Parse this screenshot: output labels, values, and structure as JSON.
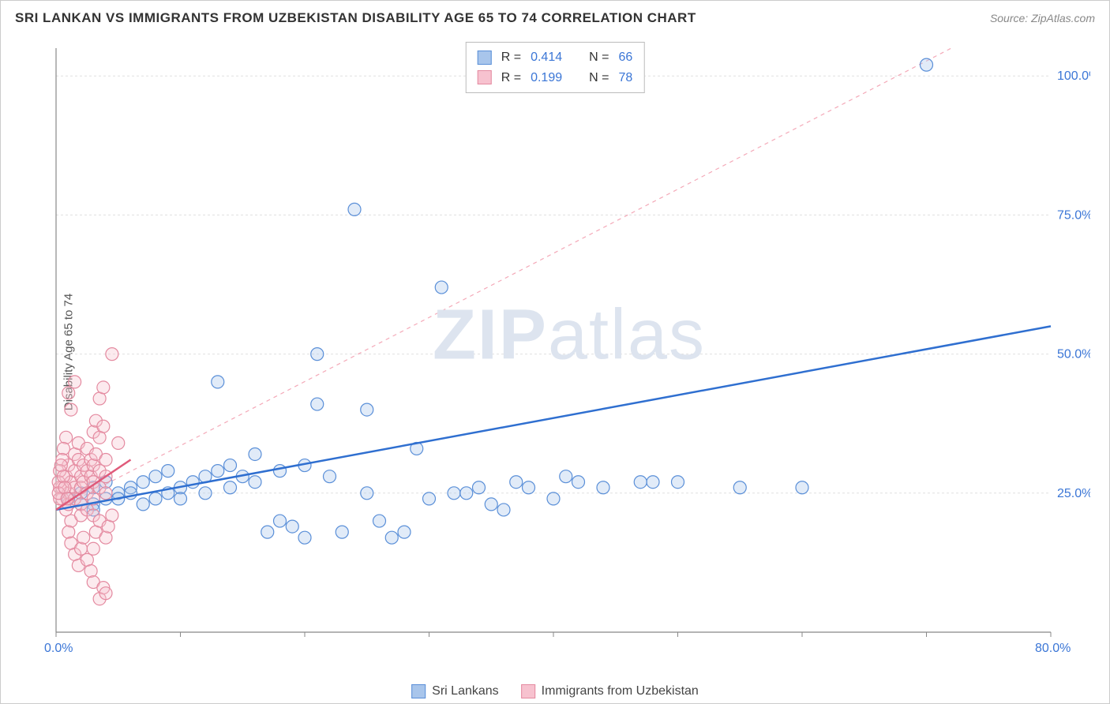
{
  "title": "SRI LANKAN VS IMMIGRANTS FROM UZBEKISTAN DISABILITY AGE 65 TO 74 CORRELATION CHART",
  "source": "Source: ZipAtlas.com",
  "y_axis_label": "Disability Age 65 to 74",
  "watermark": {
    "bold": "ZIP",
    "light": "atlas"
  },
  "chart": {
    "type": "scatter",
    "xlim": [
      0,
      80
    ],
    "ylim": [
      0,
      105
    ],
    "x_ticks": [
      0,
      10,
      20,
      30,
      40,
      50,
      60,
      70,
      80
    ],
    "x_tick_labels": [
      "0.0%",
      "",
      "",
      "",
      "",
      "",
      "",
      "",
      "80.0%"
    ],
    "y_ticks": [
      25,
      50,
      75,
      100
    ],
    "y_tick_labels": [
      "25.0%",
      "50.0%",
      "75.0%",
      "100.0%"
    ],
    "grid_color": "#e0e0e0",
    "grid_dash": "3,3",
    "axis_color": "#888888",
    "background_color": "#ffffff",
    "marker_radius": 8,
    "marker_stroke_width": 1.2,
    "marker_fill_opacity": 0.35,
    "tick_label_color": "#3b76d6",
    "tick_label_fontsize": 16
  },
  "series": [
    {
      "name": "Sri Lankans",
      "color_stroke": "#5a8fd8",
      "color_fill": "#a8c5eb",
      "R": "0.414",
      "N": "66",
      "trend": {
        "x1": 0,
        "y1": 22,
        "x2": 80,
        "y2": 55,
        "dash": "none",
        "width": 2.5,
        "color": "#2f6fd0"
      },
      "extrapolation": {
        "x1": 0,
        "y1": 22,
        "x2": 72,
        "y2": 105,
        "dash": "5,5",
        "width": 1.2,
        "color": "#f4a9b8"
      },
      "points": [
        [
          1,
          24
        ],
        [
          2,
          25
        ],
        [
          3,
          26
        ],
        [
          3,
          23
        ],
        [
          4,
          27
        ],
        [
          5,
          25
        ],
        [
          5,
          24
        ],
        [
          6,
          26
        ],
        [
          7,
          27
        ],
        [
          7,
          23
        ],
        [
          8,
          28
        ],
        [
          8,
          24
        ],
        [
          9,
          29
        ],
        [
          9,
          25
        ],
        [
          10,
          26
        ],
        [
          10,
          24
        ],
        [
          11,
          27
        ],
        [
          12,
          28
        ],
        [
          12,
          25
        ],
        [
          13,
          29
        ],
        [
          13,
          45
        ],
        [
          14,
          30
        ],
        [
          14,
          26
        ],
        [
          15,
          28
        ],
        [
          16,
          32
        ],
        [
          16,
          27
        ],
        [
          17,
          18
        ],
        [
          18,
          29
        ],
        [
          18,
          20
        ],
        [
          19,
          19
        ],
        [
          20,
          30
        ],
        [
          20,
          17
        ],
        [
          21,
          50
        ],
        [
          21,
          41
        ],
        [
          22,
          28
        ],
        [
          23,
          18
        ],
        [
          24,
          76
        ],
        [
          25,
          40
        ],
        [
          25,
          25
        ],
        [
          26,
          20
        ],
        [
          27,
          17
        ],
        [
          28,
          18
        ],
        [
          29,
          33
        ],
        [
          30,
          24
        ],
        [
          31,
          62
        ],
        [
          32,
          25
        ],
        [
          33,
          25
        ],
        [
          34,
          26
        ],
        [
          35,
          23
        ],
        [
          36,
          22
        ],
        [
          37,
          27
        ],
        [
          38,
          26
        ],
        [
          40,
          24
        ],
        [
          41,
          28
        ],
        [
          42,
          27
        ],
        [
          44,
          26
        ],
        [
          47,
          27
        ],
        [
          48,
          27
        ],
        [
          50,
          27
        ],
        [
          55,
          26
        ],
        [
          60,
          26
        ],
        [
          70,
          102
        ],
        [
          3,
          22
        ],
        [
          4,
          24
        ],
        [
          6,
          25
        ],
        [
          2,
          23
        ]
      ]
    },
    {
      "name": "Immigrants from Uzbekistan",
      "color_stroke": "#e48aa0",
      "color_fill": "#f7c2cf",
      "R": "0.199",
      "N": "78",
      "trend": {
        "x1": 0,
        "y1": 22,
        "x2": 6,
        "y2": 31,
        "dash": "none",
        "width": 2.5,
        "color": "#e05a7a"
      },
      "points": [
        [
          0.5,
          24
        ],
        [
          0.5,
          26
        ],
        [
          0.8,
          28
        ],
        [
          0.8,
          22
        ],
        [
          1,
          30
        ],
        [
          1,
          25
        ],
        [
          1,
          23
        ],
        [
          1.2,
          27
        ],
        [
          1.2,
          20
        ],
        [
          1.5,
          32
        ],
        [
          1.5,
          29
        ],
        [
          1.5,
          26
        ],
        [
          1.5,
          24
        ],
        [
          1.8,
          34
        ],
        [
          1.8,
          31
        ],
        [
          2,
          28
        ],
        [
          2,
          26
        ],
        [
          2,
          23
        ],
        [
          2,
          21
        ],
        [
          2.2,
          30
        ],
        [
          2.2,
          27
        ],
        [
          2.5,
          33
        ],
        [
          2.5,
          29
        ],
        [
          2.5,
          25
        ],
        [
          2.5,
          22
        ],
        [
          2.8,
          31
        ],
        [
          2.8,
          28
        ],
        [
          3,
          36
        ],
        [
          3,
          30
        ],
        [
          3,
          27
        ],
        [
          3,
          24
        ],
        [
          3,
          21
        ],
        [
          3.2,
          38
        ],
        [
          3.2,
          32
        ],
        [
          3.5,
          42
        ],
        [
          3.5,
          35
        ],
        [
          3.5,
          29
        ],
        [
          3.5,
          26
        ],
        [
          3.8,
          44
        ],
        [
          3.8,
          37
        ],
        [
          4,
          31
        ],
        [
          4,
          28
        ],
        [
          4,
          25
        ],
        [
          4.5,
          50
        ],
        [
          5,
          34
        ],
        [
          1,
          18
        ],
        [
          1.2,
          16
        ],
        [
          1.5,
          14
        ],
        [
          1.8,
          12
        ],
        [
          2,
          15
        ],
        [
          2.2,
          17
        ],
        [
          2.5,
          13
        ],
        [
          2.8,
          11
        ],
        [
          3,
          9
        ],
        [
          3,
          15
        ],
        [
          3.2,
          18
        ],
        [
          3.5,
          20
        ],
        [
          3.5,
          6
        ],
        [
          3.8,
          8
        ],
        [
          4,
          7
        ],
        [
          4,
          17
        ],
        [
          4.2,
          19
        ],
        [
          4.5,
          21
        ],
        [
          1,
          43
        ],
        [
          1.2,
          40
        ],
        [
          1.5,
          45
        ],
        [
          0.8,
          35
        ],
        [
          0.6,
          33
        ],
        [
          0.5,
          31
        ],
        [
          0.3,
          29
        ],
        [
          0.3,
          26
        ],
        [
          0.3,
          24
        ],
        [
          0.2,
          27
        ],
        [
          0.2,
          25
        ],
        [
          0.4,
          30
        ],
        [
          0.6,
          28
        ],
        [
          0.7,
          26
        ],
        [
          0.9,
          24
        ]
      ]
    }
  ],
  "stats_box": {
    "rows": [
      {
        "swatch_fill": "#a8c5eb",
        "swatch_stroke": "#5a8fd8",
        "r_label": "R =",
        "r_val": "0.414",
        "n_label": "N =",
        "n_val": "66"
      },
      {
        "swatch_fill": "#f7c2cf",
        "swatch_stroke": "#e48aa0",
        "r_label": "R =",
        "r_val": "0.199",
        "n_label": "N =",
        "n_val": "78"
      }
    ]
  },
  "legend": [
    {
      "swatch_fill": "#a8c5eb",
      "swatch_stroke": "#5a8fd8",
      "label": "Sri Lankans"
    },
    {
      "swatch_fill": "#f7c2cf",
      "swatch_stroke": "#e48aa0",
      "label": "Immigrants from Uzbekistan"
    }
  ]
}
